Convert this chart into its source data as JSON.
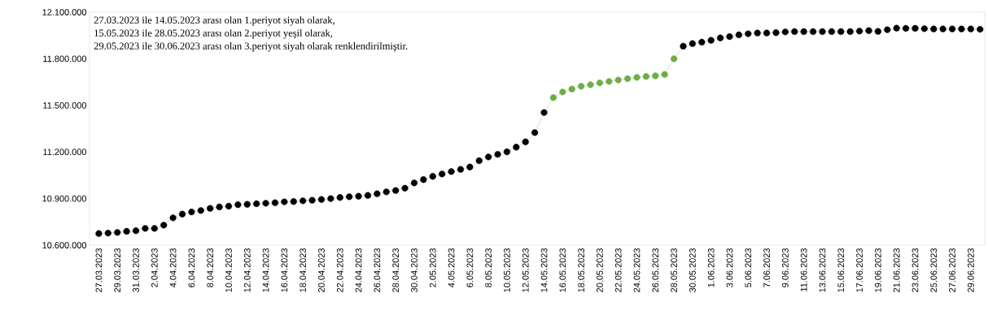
{
  "chart_data": {
    "type": "line",
    "categories": [
      "27.03.2023",
      null,
      "29.03.2023",
      null,
      "31.03.2023",
      null,
      "2.04.2023",
      null,
      "4.04.2023",
      null,
      "6.04.2023",
      null,
      "8.04.2023",
      null,
      "10.04.2023",
      null,
      "12.04.2023",
      null,
      "14.04.2023",
      null,
      "16.04.2023",
      null,
      "18.04.2023",
      null,
      "20.04.2023",
      null,
      "22.04.2023",
      null,
      "24.04.2023",
      null,
      "26.04.2023",
      null,
      "28.04.2023",
      null,
      "30.04.2023",
      null,
      "2.05.2023",
      null,
      "4.05.2023",
      null,
      "6.05.2023",
      null,
      "8.05.2023",
      null,
      "10.05.2023",
      null,
      "12.05.2023",
      null,
      "14.05.2023",
      null,
      "16.05.2023",
      null,
      "18.05.2023",
      null,
      "20.05.2023",
      null,
      "22.05.2023",
      null,
      "24.05.2023",
      null,
      "26.05.2023",
      null,
      "28.05.2023",
      null,
      "30.05.2023",
      null,
      "1.06.2023",
      null,
      "3.06.2023",
      null,
      "5.06.2023",
      null,
      "7.06.2023",
      null,
      "9.06.2023",
      null,
      "11.06.2023",
      null,
      "13.06.2023",
      null,
      "15.06.2023",
      null,
      "17.06.2023",
      null,
      "19.06.2023",
      null,
      "21.06.2023",
      null,
      "23.06.2023",
      null,
      "25.06.2023",
      null,
      "27.06.2023",
      null,
      "29.06.2023",
      null
    ],
    "series": [
      {
        "color": "#bfbfbf",
        "values": [
          10675000,
          10678000,
          10682000,
          10689000,
          10693000,
          10708000,
          10708000,
          10729000,
          10776000,
          10800000,
          10814000,
          10823000,
          10837000,
          10846000,
          10851000,
          10861000,
          10863000,
          10867000,
          10870000,
          10873000,
          10879000,
          10881000,
          10886000,
          10889000,
          10894000,
          10900000,
          10907000,
          10912000,
          10915000,
          10920000,
          10931000,
          10943000,
          10952000,
          10967000,
          11001000,
          11022000,
          11043000,
          11058000,
          11074000,
          11088000,
          11103000,
          11144000,
          11168000,
          11185000,
          11201000,
          11231000,
          11265000,
          11325000,
          11454000,
          11550000,
          11586000,
          11605000,
          11623000,
          11633000,
          11645000,
          11654000,
          11663000,
          11672000,
          11680000,
          11686000,
          11690000,
          11699000,
          11800000,
          11881000,
          11898000,
          11907000,
          11919000,
          11934000,
          11943000,
          11954000,
          11961000,
          11966000,
          11966000,
          11968000,
          11973000,
          11975000,
          11975000,
          11975000,
          11975000,
          11975000,
          11975000,
          11975000,
          11978000,
          11981000,
          11976000,
          11987000,
          11997000,
          11996000,
          11996000,
          11994000,
          11992000,
          11992000,
          11992000,
          11992000,
          11992000,
          11990000
        ],
        "colors": [
          "#000000",
          "#000000",
          "#000000",
          "#000000",
          "#000000",
          "#000000",
          "#000000",
          "#000000",
          "#000000",
          "#000000",
          "#000000",
          "#000000",
          "#000000",
          "#000000",
          "#000000",
          "#000000",
          "#000000",
          "#000000",
          "#000000",
          "#000000",
          "#000000",
          "#000000",
          "#000000",
          "#000000",
          "#000000",
          "#000000",
          "#000000",
          "#000000",
          "#000000",
          "#000000",
          "#000000",
          "#000000",
          "#000000",
          "#000000",
          "#000000",
          "#000000",
          "#000000",
          "#000000",
          "#000000",
          "#000000",
          "#000000",
          "#000000",
          "#000000",
          "#000000",
          "#000000",
          "#000000",
          "#000000",
          "#000000",
          "#000000",
          "#70ad47",
          "#70ad47",
          "#70ad47",
          "#70ad47",
          "#70ad47",
          "#70ad47",
          "#70ad47",
          "#70ad47",
          "#70ad47",
          "#70ad47",
          "#70ad47",
          "#70ad47",
          "#70ad47",
          "#70ad47",
          "#000000",
          "#000000",
          "#000000",
          "#000000",
          "#000000",
          "#000000",
          "#000000",
          "#000000",
          "#000000",
          "#000000",
          "#000000",
          "#000000",
          "#000000",
          "#000000",
          "#000000",
          "#000000",
          "#000000",
          "#000000",
          "#000000",
          "#000000",
          "#000000",
          "#000000",
          "#000000",
          "#000000",
          "#000000",
          "#000000",
          "#000000",
          "#000000",
          "#000000",
          "#000000",
          "#000000",
          "#000000",
          "#000000"
        ]
      }
    ],
    "ylim": [
      10600000,
      12100000
    ],
    "yticks": [
      {
        "value": 10600000,
        "label": "10.600.000"
      },
      {
        "value": 10900000,
        "label": "10.900.000"
      },
      {
        "value": 11200000,
        "label": "11.200.000"
      },
      {
        "value": 11500000,
        "label": "11.500.000"
      },
      {
        "value": 11800000,
        "label": "11.800.000"
      },
      {
        "value": 12100000,
        "label": "12.100.000"
      }
    ],
    "marker": "circle",
    "line_style": "solid",
    "grid": false,
    "annotations": [
      "27.03.2023 ile 14.05.2023 arası olan 1.periyot siyah olarak,",
      "15.05.2023 ile 28.05.2023 arası olan 2.periyot yeşil olarak,",
      "29.05.2023 ile 30.06.2023 arası olan 3.periyot siyah olarak renklendirilmiştir."
    ]
  }
}
